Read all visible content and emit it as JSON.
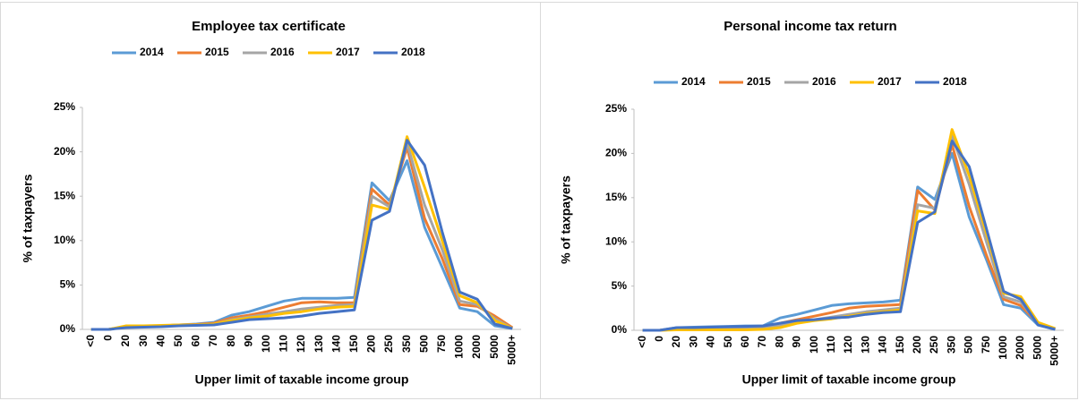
{
  "chart_data": [
    {
      "type": "line",
      "title": "Employee tax certificate",
      "x_label": "Upper limit of taxable income group",
      "y_label": "% of taxpayers",
      "categories": [
        "<0",
        "0",
        "20",
        "30",
        "40",
        "50",
        "60",
        "70",
        "80",
        "90",
        "100",
        "110",
        "120",
        "130",
        "140",
        "150",
        "200",
        "250",
        "350",
        "500",
        "750",
        "1000",
        "2000",
        "5000",
        "5000+"
      ],
      "ylim": [
        0,
        25
      ],
      "yticks": [
        {
          "value": 0,
          "label": "0%"
        },
        {
          "value": 5,
          "label": "5%"
        },
        {
          "value": 10,
          "label": "10%"
        },
        {
          "value": 15,
          "label": "15%"
        },
        {
          "value": 20,
          "label": "20%"
        },
        {
          "value": 25,
          "label": "25%"
        }
      ],
      "legend": "top",
      "series": [
        {
          "name": "2014",
          "color": "#5b9bd5",
          "values": [
            0,
            0,
            0.3,
            0.35,
            0.4,
            0.5,
            0.6,
            0.8,
            1.6,
            2.0,
            2.6,
            3.2,
            3.5,
            3.5,
            3.5,
            3.6,
            16.5,
            14.5,
            19.0,
            11.5,
            7.0,
            2.4,
            2.0,
            0.4,
            0.1
          ]
        },
        {
          "name": "2015",
          "color": "#ed7d31",
          "values": [
            0,
            0,
            0.3,
            0.35,
            0.4,
            0.5,
            0.55,
            0.7,
            1.3,
            1.6,
            2.0,
            2.5,
            3.0,
            3.1,
            3.0,
            3.0,
            15.8,
            14.0,
            20.5,
            12.5,
            8.0,
            2.8,
            2.6,
            1.5,
            0.2
          ]
        },
        {
          "name": "2016",
          "color": "#a5a5a5",
          "values": [
            0,
            0,
            0.3,
            0.35,
            0.4,
            0.5,
            0.5,
            0.6,
            1.1,
            1.4,
            1.7,
            2.0,
            2.3,
            2.5,
            2.7,
            2.8,
            15.0,
            13.8,
            21.0,
            14.0,
            9.0,
            3.2,
            2.8,
            1.2,
            0.1
          ]
        },
        {
          "name": "2017",
          "color": "#ffc000",
          "values": [
            0,
            0,
            0.4,
            0.4,
            0.45,
            0.5,
            0.5,
            0.6,
            1.0,
            1.3,
            1.5,
            1.8,
            2.0,
            2.3,
            2.5,
            2.6,
            14.0,
            13.5,
            21.7,
            16.0,
            10.0,
            3.8,
            3.0,
            1.0,
            0.1
          ]
        },
        {
          "name": "2018",
          "color": "#4472c4",
          "values": [
            0,
            0,
            0.2,
            0.25,
            0.3,
            0.4,
            0.45,
            0.5,
            0.8,
            1.1,
            1.2,
            1.3,
            1.5,
            1.8,
            2.0,
            2.2,
            12.3,
            13.3,
            21.3,
            18.5,
            11.0,
            4.2,
            3.4,
            0.6,
            0.1
          ]
        }
      ]
    },
    {
      "type": "line",
      "title": "Personal income tax return",
      "x_label": "Upper limit of taxable income group",
      "y_label": "% of taxpayers",
      "categories": [
        "<0",
        "0",
        "20",
        "30",
        "40",
        "50",
        "60",
        "70",
        "80",
        "90",
        "100",
        "110",
        "120",
        "130",
        "140",
        "150",
        "200",
        "250",
        "350",
        "500",
        "750",
        "1000",
        "2000",
        "5000",
        "5000+"
      ],
      "ylim": [
        0,
        25
      ],
      "yticks": [
        {
          "value": 0,
          "label": "0%"
        },
        {
          "value": 5,
          "label": "5%"
        },
        {
          "value": 10,
          "label": "10%"
        },
        {
          "value": 15,
          "label": "15%"
        },
        {
          "value": 20,
          "label": "20%"
        },
        {
          "value": 25,
          "label": "25%"
        }
      ],
      "legend": "top",
      "series": [
        {
          "name": "2014",
          "color": "#5b9bd5",
          "values": [
            0,
            0,
            0.3,
            0.35,
            0.4,
            0.45,
            0.5,
            0.5,
            1.4,
            1.8,
            2.3,
            2.8,
            3.0,
            3.1,
            3.2,
            3.4,
            16.2,
            14.8,
            20.0,
            12.8,
            8.0,
            2.9,
            2.5,
            0.6,
            0.1
          ]
        },
        {
          "name": "2015",
          "color": "#ed7d31",
          "values": [
            0,
            0,
            0.2,
            0.2,
            0.2,
            0.2,
            0.3,
            0.3,
            0.8,
            1.2,
            1.6,
            2.0,
            2.5,
            2.7,
            2.8,
            2.9,
            15.8,
            13.6,
            21.0,
            14.0,
            8.5,
            3.5,
            2.8,
            0.8,
            0.1
          ]
        },
        {
          "name": "2016",
          "color": "#a5a5a5",
          "values": [
            0,
            0,
            0.1,
            0.1,
            0.1,
            0.1,
            0.15,
            0.2,
            0.5,
            0.9,
            1.2,
            1.5,
            1.8,
            2.1,
            2.3,
            2.5,
            14.2,
            13.8,
            22.0,
            16.5,
            10.0,
            3.8,
            3.2,
            0.8,
            0.1
          ]
        },
        {
          "name": "2017",
          "color": "#ffc000",
          "values": [
            0,
            0,
            0.05,
            0.05,
            0.05,
            0.05,
            0.05,
            0.1,
            0.3,
            0.8,
            1.1,
            1.3,
            1.6,
            1.9,
            2.1,
            2.3,
            13.5,
            13.2,
            22.7,
            17.5,
            11.0,
            4.2,
            3.8,
            0.9,
            0.2
          ]
        },
        {
          "name": "2018",
          "color": "#4472c4",
          "values": [
            0,
            0,
            0.3,
            0.3,
            0.35,
            0.4,
            0.45,
            0.5,
            0.8,
            1.1,
            1.2,
            1.4,
            1.5,
            1.8,
            2.0,
            2.1,
            12.2,
            13.4,
            21.4,
            18.5,
            11.5,
            4.4,
            3.5,
            0.6,
            0.1
          ]
        }
      ]
    }
  ]
}
